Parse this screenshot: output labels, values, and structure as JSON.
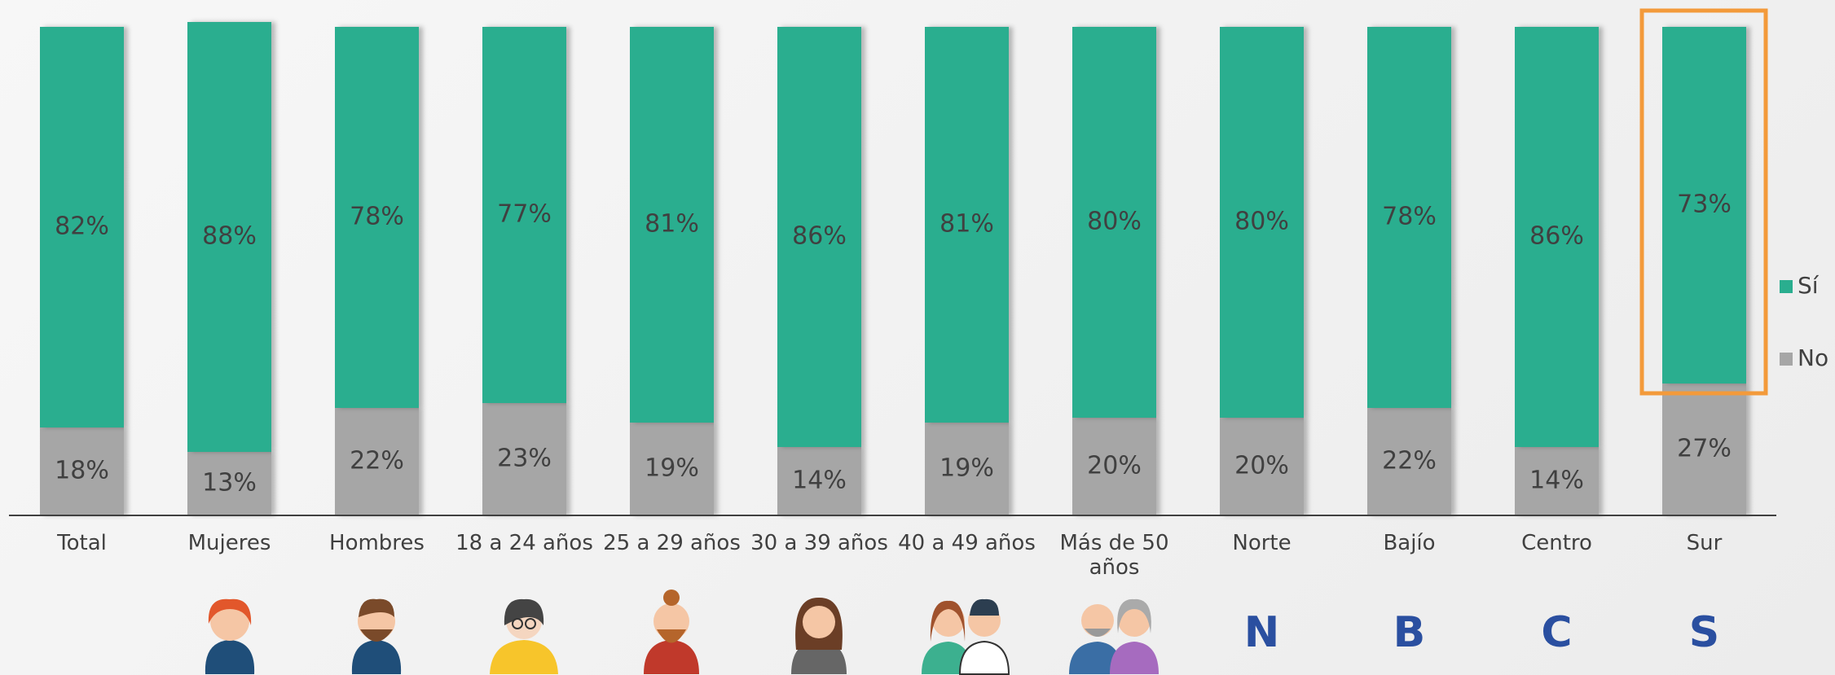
{
  "chart_data": {
    "type": "stacked_bar",
    "categories": [
      "Total",
      "Mujeres",
      "Hombres",
      "18 a 24 años",
      "25 a 29 años",
      "30 a 39 años",
      "40 a 49 años",
      "Más de 50 años",
      "Norte",
      "Bajío",
      "Centro",
      "Sur"
    ],
    "series": [
      {
        "name": "No",
        "color": "#a6a6a6",
        "values": [
          18,
          13,
          22,
          23,
          19,
          14,
          19,
          20,
          20,
          22,
          14,
          27
        ],
        "value_labels": [
          "18%",
          "13%",
          "22%",
          "23%",
          "19%",
          "14%",
          "19%",
          "20%",
          "20%",
          "22%",
          "14%",
          "27%"
        ]
      },
      {
        "name": "Sí",
        "color": "#2aae8f",
        "values": [
          82,
          88,
          78,
          77,
          81,
          86,
          81,
          80,
          80,
          78,
          86,
          73
        ],
        "value_labels": [
          "82%",
          "88%",
          "78%",
          "77%",
          "81%",
          "86%",
          "81%",
          "80%",
          "80%",
          "78%",
          "86%",
          "73%"
        ]
      }
    ],
    "ylim": [
      0,
      100
    ],
    "legend": "right",
    "icon_labels": [
      "N",
      "B",
      "C",
      "S"
    ]
  }
}
